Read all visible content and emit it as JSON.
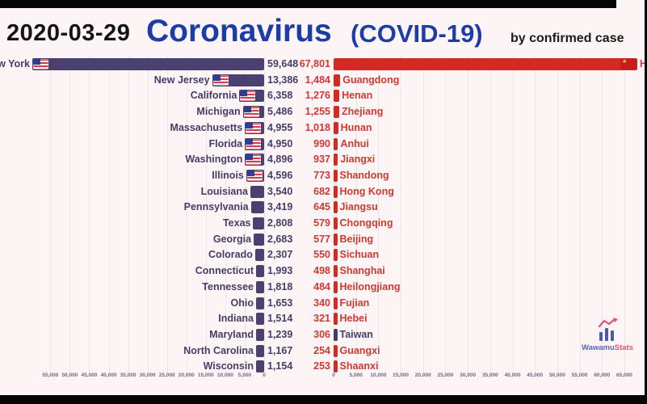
{
  "header": {
    "date": "2020-03-29",
    "title": "Coronavirus",
    "subtitle": "(COVID-19)",
    "byline": "by confirmed case"
  },
  "watermark": {
    "name_blue": "Wawamu",
    "name_red": "Stats"
  },
  "colors": {
    "background": "#fdf5f5",
    "title_blue": "#1c3da6",
    "us_bar": "#4a4170",
    "us_text": "#433d6b",
    "cn_bar": "#d42a24",
    "cn_text": "#cd3a33",
    "taiwan_text": "#433d6b"
  },
  "chart_data": {
    "type": "bar",
    "orientation": "horizontal-mirrored",
    "title": "Coronavirus (COVID-19)",
    "subtitle": "by confirmed case",
    "date": "2020-03-29",
    "left": {
      "name": "United States",
      "flag": "us",
      "bar_color": "#4a4170",
      "text_color": "#433d6b",
      "axis_ticks": [
        "55,000",
        "50,000",
        "45,000",
        "40,000",
        "35,000",
        "30,000",
        "25,000",
        "20,000",
        "15,000",
        "10,000",
        "5,000",
        "0"
      ],
      "entries": [
        {
          "label": "New York",
          "value": 59648,
          "display": "59,648"
        },
        {
          "label": "New Jersey",
          "value": 13386,
          "display": "13,386"
        },
        {
          "label": "California",
          "value": 6358,
          "display": "6,358"
        },
        {
          "label": "Michigan",
          "value": 5486,
          "display": "5,486"
        },
        {
          "label": "Massachusetts",
          "value": 4955,
          "display": "4,955"
        },
        {
          "label": "Florida",
          "value": 4950,
          "display": "4,950"
        },
        {
          "label": "Washington",
          "value": 4896,
          "display": "4,896"
        },
        {
          "label": "Illinois",
          "value": 4596,
          "display": "4,596"
        },
        {
          "label": "Louisiana",
          "value": 3540,
          "display": "3,540"
        },
        {
          "label": "Pennsylvania",
          "value": 3419,
          "display": "3,419"
        },
        {
          "label": "Texas",
          "value": 2808,
          "display": "2,808"
        },
        {
          "label": "Georgia",
          "value": 2683,
          "display": "2,683"
        },
        {
          "label": "Colorado",
          "value": 2307,
          "display": "2,307"
        },
        {
          "label": "Connecticut",
          "value": 1993,
          "display": "1,993"
        },
        {
          "label": "Tennessee",
          "value": 1818,
          "display": "1,818"
        },
        {
          "label": "Ohio",
          "value": 1653,
          "display": "1,653"
        },
        {
          "label": "Indiana",
          "value": 1514,
          "display": "1,514"
        },
        {
          "label": "Maryland",
          "value": 1239,
          "display": "1,239"
        },
        {
          "label": "North Carolina",
          "value": 1167,
          "display": "1,167"
        },
        {
          "label": "Wisconsin",
          "value": 1154,
          "display": "1,154"
        }
      ]
    },
    "right": {
      "name": "China",
      "flag": "cn",
      "bar_color": "#d42a24",
      "text_color": "#cd3a33",
      "axis_ticks": [
        "0",
        "5,000",
        "10,000",
        "15,000",
        "20,000",
        "25,000",
        "30,000",
        "35,000",
        "40,000",
        "45,000",
        "50,000",
        "55,000",
        "60,000",
        "65,000"
      ],
      "entries": [
        {
          "label": "Hubei",
          "value": 67801,
          "display": "67,801"
        },
        {
          "label": "Guangdong",
          "value": 1484,
          "display": "1,484"
        },
        {
          "label": "Henan",
          "value": 1276,
          "display": "1,276"
        },
        {
          "label": "Zhejiang",
          "value": 1255,
          "display": "1,255"
        },
        {
          "label": "Hunan",
          "value": 1018,
          "display": "1,018"
        },
        {
          "label": "Anhui",
          "value": 990,
          "display": "990"
        },
        {
          "label": "Jiangxi",
          "value": 937,
          "display": "937"
        },
        {
          "label": "Shandong",
          "value": 773,
          "display": "773"
        },
        {
          "label": "Hong Kong",
          "value": 682,
          "display": "682"
        },
        {
          "label": "Jiangsu",
          "value": 645,
          "display": "645"
        },
        {
          "label": "Chongqing",
          "value": 579,
          "display": "579"
        },
        {
          "label": "Beijing",
          "value": 577,
          "display": "577"
        },
        {
          "label": "Sichuan",
          "value": 550,
          "display": "550"
        },
        {
          "label": "Shanghai",
          "value": 498,
          "display": "498"
        },
        {
          "label": "Heilongjiang",
          "value": 484,
          "display": "484"
        },
        {
          "label": "Fujian",
          "value": 340,
          "display": "340"
        },
        {
          "label": "Hebei",
          "value": 321,
          "display": "321"
        },
        {
          "label": "Taiwan",
          "value": 306,
          "display": "306",
          "label_color": "#433d6b",
          "bar_color": "#433d6b"
        },
        {
          "label": "Guangxi",
          "value": 254,
          "display": "254"
        },
        {
          "label": "Shaanxi",
          "value": 253,
          "display": "253"
        }
      ]
    }
  }
}
